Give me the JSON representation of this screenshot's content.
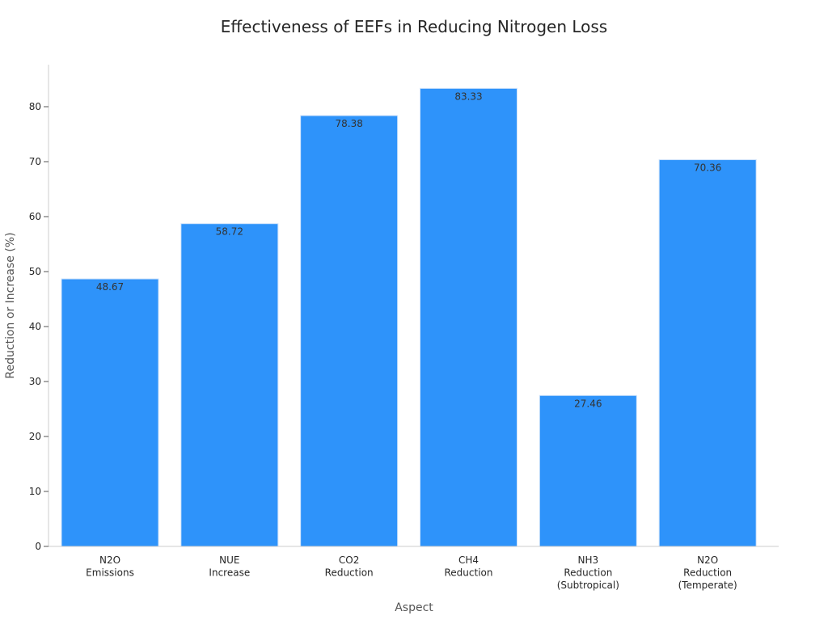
{
  "chart_data": {
    "type": "bar",
    "title": "Effectiveness of EEFs in Reducing Nitrogen Loss",
    "xlabel": "Aspect",
    "ylabel": "Reduction or Increase (%)",
    "categories": [
      [
        "N2O",
        "Emissions"
      ],
      [
        "NUE",
        "Increase"
      ],
      [
        "CO2",
        "Reduction"
      ],
      [
        "CH4",
        "Reduction"
      ],
      [
        "NH3",
        "Reduction",
        "(Subtropical)"
      ],
      [
        "N2O",
        "Reduction",
        "(Temperate)"
      ]
    ],
    "values": [
      48.67,
      58.72,
      78.38,
      83.33,
      27.46,
      70.36
    ],
    "data_labels": [
      "48.67",
      "58.72",
      "78.38",
      "83.33",
      "27.46",
      "70.36"
    ],
    "ylim": [
      0,
      87.5
    ],
    "yticks": [
      0,
      10,
      20,
      30,
      40,
      50,
      60,
      70,
      80
    ],
    "grid": false,
    "colors": {
      "bar": "#2e93fa",
      "bar_edge": "#cfe3fb",
      "label": "#333333"
    }
  }
}
